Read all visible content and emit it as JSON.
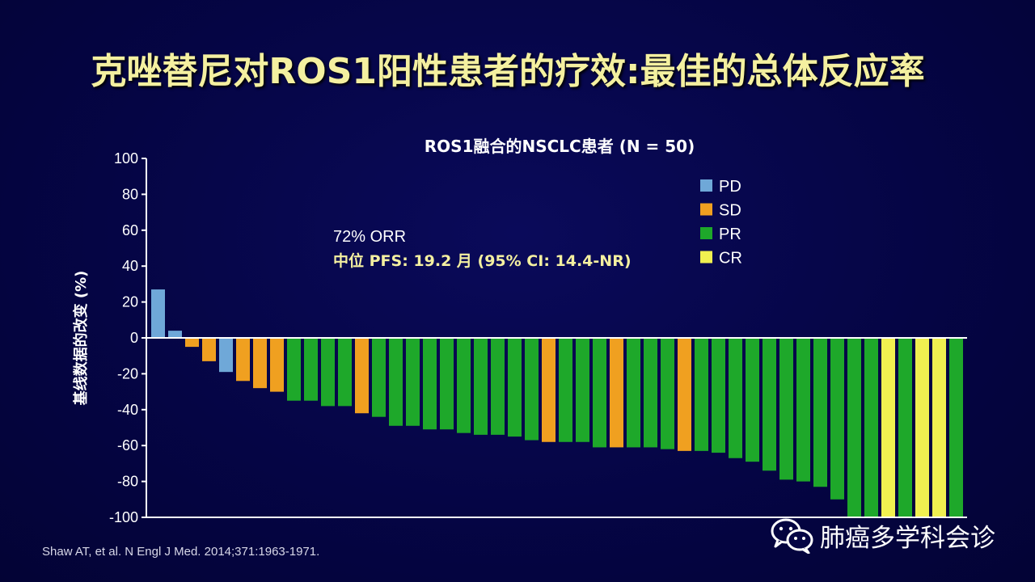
{
  "slide_title": "克唑替尼对ROS1阳性患者的疗效:最佳的总体反应率",
  "citation": "Shaw AT, et al. N Engl J Med. 2014;371:1963-1971.",
  "watermark_text": "肺癌多学科会诊",
  "colors": {
    "background": "#050545",
    "title": "#f4f0a0",
    "PD": "#6fa8d8",
    "SD": "#f0a020",
    "PR": "#1ea82a",
    "CR": "#f0f050"
  },
  "chart_data": {
    "type": "bar",
    "title": "ROS1融合的NSCLC患者 (N = 50)",
    "ylabel": "基线数据的改变 (%)",
    "xlabel": "",
    "ylim": [
      -100,
      100
    ],
    "yticks": [
      100,
      80,
      60,
      40,
      20,
      0,
      -20,
      -40,
      -60,
      -80,
      -100
    ],
    "annotations": {
      "orr": "72% ORR",
      "pfs": "中位 PFS: 19.2 月 (95%  CI: 14.4-NR)"
    },
    "legend": {
      "placement": "top-right",
      "entries": [
        {
          "label": "PD",
          "color": "#6fa8d8"
        },
        {
          "label": "SD",
          "color": "#f0a020"
        },
        {
          "label": "PR",
          "color": "#1ea82a"
        },
        {
          "label": "CR",
          "color": "#f0f050"
        }
      ]
    },
    "bars": [
      {
        "value": 27,
        "response": "PD"
      },
      {
        "value": 4,
        "response": "PD"
      },
      {
        "value": -5,
        "response": "SD"
      },
      {
        "value": -13,
        "response": "SD"
      },
      {
        "value": -19,
        "response": "PD"
      },
      {
        "value": -24,
        "response": "SD"
      },
      {
        "value": -28,
        "response": "SD"
      },
      {
        "value": -30,
        "response": "SD"
      },
      {
        "value": -35,
        "response": "PR"
      },
      {
        "value": -35,
        "response": "PR"
      },
      {
        "value": -38,
        "response": "PR"
      },
      {
        "value": -38,
        "response": "PR"
      },
      {
        "value": -42,
        "response": "SD"
      },
      {
        "value": -44,
        "response": "PR"
      },
      {
        "value": -49,
        "response": "PR"
      },
      {
        "value": -49,
        "response": "PR"
      },
      {
        "value": -51,
        "response": "PR"
      },
      {
        "value": -51,
        "response": "PR"
      },
      {
        "value": -53,
        "response": "PR"
      },
      {
        "value": -54,
        "response": "PR"
      },
      {
        "value": -54,
        "response": "PR"
      },
      {
        "value": -55,
        "response": "PR"
      },
      {
        "value": -57,
        "response": "PR"
      },
      {
        "value": -58,
        "response": "SD"
      },
      {
        "value": -58,
        "response": "PR"
      },
      {
        "value": -58,
        "response": "PR"
      },
      {
        "value": -61,
        "response": "PR"
      },
      {
        "value": -61,
        "response": "SD"
      },
      {
        "value": -61,
        "response": "PR"
      },
      {
        "value": -61,
        "response": "PR"
      },
      {
        "value": -62,
        "response": "PR"
      },
      {
        "value": -63,
        "response": "SD"
      },
      {
        "value": -63,
        "response": "PR"
      },
      {
        "value": -64,
        "response": "PR"
      },
      {
        "value": -67,
        "response": "PR"
      },
      {
        "value": -69,
        "response": "PR"
      },
      {
        "value": -74,
        "response": "PR"
      },
      {
        "value": -79,
        "response": "PR"
      },
      {
        "value": -80,
        "response": "PR"
      },
      {
        "value": -83,
        "response": "PR"
      },
      {
        "value": -90,
        "response": "PR"
      },
      {
        "value": -100,
        "response": "PR"
      },
      {
        "value": -100,
        "response": "PR"
      },
      {
        "value": -100,
        "response": "CR"
      },
      {
        "value": -100,
        "response": "PR"
      },
      {
        "value": -100,
        "response": "CR"
      },
      {
        "value": -100,
        "response": "CR"
      },
      {
        "value": -100,
        "response": "PR"
      }
    ]
  }
}
